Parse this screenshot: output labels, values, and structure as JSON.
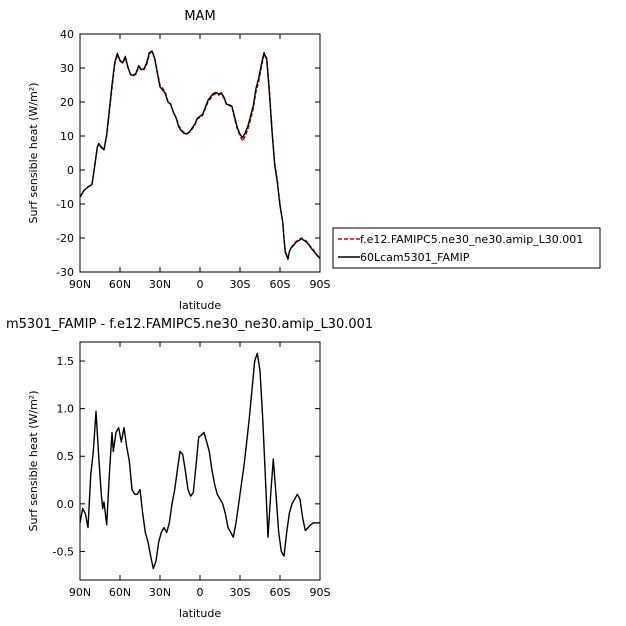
{
  "chart_data": [
    {
      "type": "line",
      "title": "MAM",
      "xlabel": "latitude",
      "ylabel": "Surf sensible heat (W/m²)",
      "xlim": [
        90,
        -90
      ],
      "ylim": [
        -30,
        40
      ],
      "xticks": [
        90,
        60,
        30,
        0,
        -30,
        -60,
        -90
      ],
      "xtick_labels": [
        "90N",
        "60N",
        "30N",
        "0",
        "30S",
        "60S",
        "90S"
      ],
      "yticks": [
        -30,
        -20,
        -10,
        0,
        10,
        20,
        30,
        40
      ],
      "ytick_labels": [
        "-30",
        "-20",
        "-10",
        "0",
        "10",
        "20",
        "30",
        "40"
      ],
      "legend": {
        "placement": "right",
        "entries": [
          "f.e12.FAMIPC5.ne30_ne30.amip_L30.001",
          "60Lcam5301_FAMIP"
        ]
      },
      "series": [
        {
          "name": "f.e12.FAMIPC5.ne30_ne30.amip_L30.001",
          "color": "#cc0000",
          "dash": "dashed",
          "x": [
            90,
            87,
            84,
            81,
            79,
            77,
            76,
            74,
            72,
            70,
            68,
            66,
            64,
            62,
            60,
            58,
            56,
            54,
            52,
            50,
            48,
            46,
            44,
            42,
            40,
            38,
            36,
            34,
            32,
            30,
            28,
            26,
            24,
            22,
            20,
            18,
            16,
            14,
            12,
            10,
            8,
            6,
            4,
            2,
            0,
            -2,
            -4,
            -6,
            -8,
            -10,
            -12,
            -14,
            -16,
            -18,
            -20,
            -22,
            -24,
            -26,
            -28,
            -30,
            -32,
            -34,
            -36,
            -38,
            -40,
            -42,
            -44,
            -46,
            -48,
            -50,
            -52,
            -54,
            -56,
            -58,
            -60,
            -62,
            -63,
            -64,
            -65,
            -66,
            -67,
            -68,
            -70,
            -72,
            -74,
            -76,
            -78,
            -80,
            -82,
            -84,
            -86,
            -88,
            -90
          ],
          "values": [
            -8,
            -6,
            -5,
            -4,
            1,
            6.5,
            7.5,
            6.5,
            6,
            10,
            17,
            24,
            31,
            34,
            32,
            31.5,
            33,
            30,
            28,
            28,
            28,
            30.5,
            29.5,
            29.5,
            31,
            34,
            35,
            33,
            29,
            25,
            24,
            23,
            20,
            19.5,
            17,
            15.5,
            13,
            12,
            11,
            10.8,
            11,
            12,
            13,
            15,
            15.5,
            16,
            18,
            20,
            21,
            22,
            22.5,
            22,
            22.5,
            21,
            19,
            19,
            18.5,
            15,
            12,
            10,
            8.5,
            10,
            12,
            15,
            18,
            23,
            26,
            30,
            34,
            33,
            24,
            12,
            2,
            -3,
            -10,
            -15,
            -20,
            -24,
            -25,
            -26,
            -24,
            -23,
            -22,
            -21,
            -20.5,
            -20,
            -20.5,
            -21,
            -22,
            -23,
            -24,
            -25,
            -26
          ],
          "note": ""
        },
        {
          "name": "60Lcam5301_FAMIP",
          "color": "#000000",
          "dash": "solid",
          "x": [
            90,
            87,
            84,
            81,
            79,
            77,
            76,
            74,
            72,
            70,
            68,
            66,
            64,
            62,
            60,
            58,
            56,
            54,
            52,
            50,
            48,
            46,
            44,
            42,
            40,
            38,
            36,
            34,
            32,
            30,
            28,
            26,
            24,
            22,
            20,
            18,
            16,
            14,
            12,
            10,
            8,
            6,
            4,
            2,
            0,
            -2,
            -4,
            -6,
            -8,
            -10,
            -12,
            -14,
            -16,
            -18,
            -20,
            -22,
            -24,
            -26,
            -28,
            -30,
            -32,
            -34,
            -36,
            -38,
            -40,
            -42,
            -44,
            -46,
            -48,
            -50,
            -52,
            -54,
            -56,
            -58,
            -60,
            -62,
            -63,
            -64,
            -65,
            -66,
            -67,
            -68,
            -70,
            -72,
            -74,
            -76,
            -78,
            -80,
            -82,
            -84,
            -86,
            -88,
            -90
          ],
          "values": [
            -8,
            -6,
            -5,
            -4.3,
            1.2,
            6.8,
            7.8,
            6.8,
            5.9,
            10.5,
            17.5,
            25,
            31.5,
            34.3,
            32.3,
            31.5,
            33.4,
            30.2,
            28,
            27.8,
            28.5,
            30.7,
            29.5,
            29.8,
            31.5,
            34.5,
            35,
            32.8,
            28.5,
            24.5,
            23.5,
            22.5,
            20,
            19.3,
            17,
            15.4,
            12.8,
            11.5,
            10.8,
            10.6,
            11.2,
            12.3,
            13.4,
            15.2,
            15.8,
            16.4,
            18.4,
            20.5,
            21.6,
            22.5,
            22.8,
            22.3,
            22.7,
            21.4,
            19.3,
            19.2,
            18.7,
            15.5,
            12.5,
            10.5,
            9.5,
            11,
            13,
            16,
            19,
            24,
            27,
            31,
            34.5,
            32.5,
            23,
            11.5,
            1.5,
            -3.5,
            -10.5,
            -15.3,
            -20.3,
            -24.2,
            -25.3,
            -26.2,
            -24.1,
            -23.1,
            -22.2,
            -21.3,
            -20.8,
            -20.2,
            -20.7,
            -21.2,
            -22.2,
            -23.3,
            -24.2,
            -25.2,
            -26
          ]
        }
      ]
    },
    {
      "type": "line",
      "title": "m5301_FAMIP - f.e12.FAMIPC5.ne30_ne30.amip_L30.001",
      "xlabel": "latitude",
      "ylabel": "Surf sensible heat (W/m²)",
      "xlim": [
        90,
        -90
      ],
      "ylim": [
        -0.8,
        1.7
      ],
      "xticks": [
        90,
        60,
        30,
        0,
        -30,
        -60,
        -90
      ],
      "xtick_labels": [
        "90N",
        "60N",
        "30N",
        "0",
        "30S",
        "60S",
        "90S"
      ],
      "yticks": [
        -0.5,
        0.0,
        0.5,
        1.0,
        1.5
      ],
      "ytick_labels": [
        "-0.5",
        "0.0",
        "0.5",
        "1.0",
        "1.5"
      ],
      "series": [
        {
          "color": "#000000",
          "dash": "solid",
          "x": [
            90,
            88,
            86,
            84,
            82,
            80,
            78,
            76,
            74,
            73,
            72,
            70,
            68,
            66,
            65,
            63,
            61,
            59,
            57,
            55,
            53,
            51,
            49,
            47,
            45,
            43,
            41,
            39,
            37,
            35,
            33,
            31,
            29,
            27,
            25,
            23,
            21,
            19,
            17,
            15,
            13,
            11,
            9,
            7,
            5,
            3,
            1,
            -1,
            -3,
            -5,
            -7,
            -9,
            -11,
            -13,
            -15,
            -17,
            -19,
            -21,
            -23,
            -25,
            -27,
            -29,
            -31,
            -33,
            -35,
            -37,
            -39,
            -41,
            -43,
            -45,
            -47,
            -49,
            -51,
            -53,
            -55,
            -57,
            -59,
            -61,
            -63,
            -65,
            -67,
            -69,
            -71,
            -73,
            -75,
            -77,
            -79,
            -81,
            -83,
            -85,
            -87,
            -88,
            -90
          ],
          "values": [
            -0.2,
            -0.05,
            -0.1,
            -0.25,
            0.3,
            0.55,
            0.97,
            0.5,
            0.1,
            -0.05,
            0.02,
            -0.22,
            0.3,
            0.75,
            0.55,
            0.75,
            0.8,
            0.65,
            0.8,
            0.6,
            0.45,
            0.15,
            0.1,
            0.1,
            0.15,
            -0.1,
            -0.3,
            -0.4,
            -0.55,
            -0.68,
            -0.6,
            -0.4,
            -0.3,
            -0.25,
            -0.3,
            -0.2,
            0.0,
            0.15,
            0.35,
            0.55,
            0.52,
            0.35,
            0.15,
            0.08,
            0.12,
            0.4,
            0.7,
            0.72,
            0.75,
            0.65,
            0.55,
            0.35,
            0.2,
            0.1,
            0.05,
            0.0,
            -0.1,
            -0.25,
            -0.3,
            -0.35,
            -0.2,
            0.0,
            0.2,
            0.4,
            0.65,
            0.9,
            1.2,
            1.5,
            1.58,
            1.4,
            0.9,
            0.3,
            -0.35,
            0.1,
            0.47,
            0.1,
            -0.3,
            -0.5,
            -0.55,
            -0.3,
            -0.1,
            0.0,
            0.05,
            0.1,
            0.05,
            -0.15,
            -0.28,
            -0.25,
            -0.22,
            -0.2,
            -0.2,
            -0.2,
            -0.2
          ]
        }
      ]
    }
  ]
}
